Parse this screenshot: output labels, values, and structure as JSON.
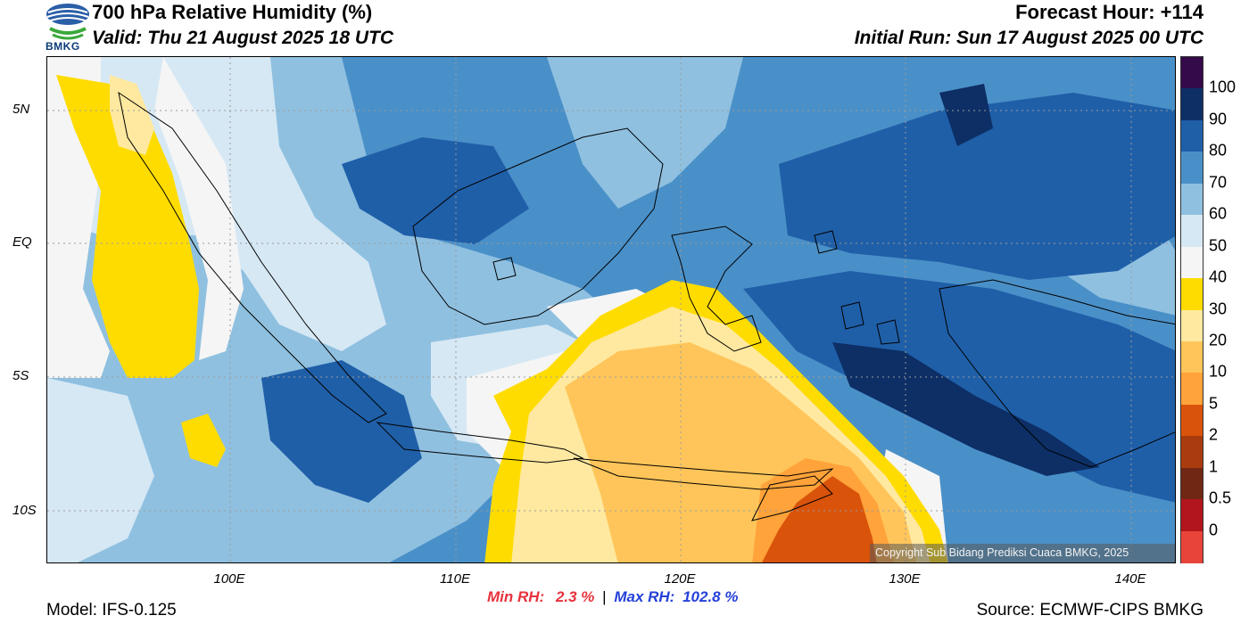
{
  "header": {
    "title": "700 hPa Relative Humidity (%)",
    "valid": "Valid: Thu 21 August 2025 18 UTC",
    "forecast_hour": "Forecast Hour: +114",
    "initial_run": "Initial Run: Sun 17 August 2025 00 UTC"
  },
  "logo": {
    "text": "BMKG"
  },
  "axes": {
    "lat_labels": [
      "5N",
      "EQ",
      "5S",
      "10S"
    ],
    "lon_labels": [
      "100E",
      "110E",
      "120E",
      "130E",
      "140E"
    ]
  },
  "copyright": "Copyright Sub Bidang Prediksi Cuaca BMKG, 2025",
  "colorbar": {
    "labels": [
      "100",
      "90",
      "80",
      "70",
      "60",
      "50",
      "40",
      "30",
      "20",
      "10",
      "5",
      "2",
      "1",
      "0.5",
      "0"
    ],
    "colors": [
      "#350a4a",
      "#0d2f66",
      "#1f5fa8",
      "#4a90c8",
      "#8fc0e0",
      "#d6e8f4",
      "#f5f5f5",
      "#ffdc00",
      "#ffe9a0",
      "#ffc55a",
      "#ffa33a",
      "#d9530b",
      "#a93c0e",
      "#702814",
      "#b3151c",
      "#e8443a"
    ]
  },
  "stats": {
    "min_label": "Min RH:",
    "min_value": "2.3 %",
    "separator": "|",
    "max_label": "Max RH:",
    "max_value": "102.8 %"
  },
  "footer": {
    "model": "Model: IFS-0.125",
    "source": "Source: ECMWF-CIPS BMKG"
  }
}
